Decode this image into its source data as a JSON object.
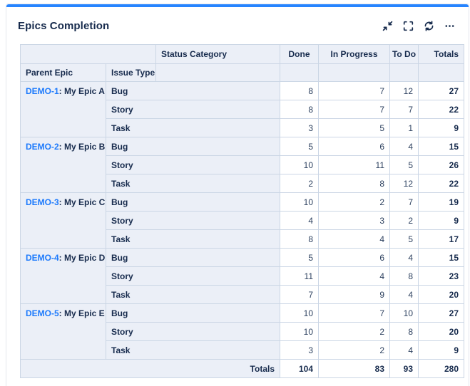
{
  "card": {
    "title": "Epics Completion",
    "accent_color": "#2684FF",
    "toolbar": {
      "collapse_tooltip": "Collapse",
      "fullscreen_tooltip": "Full screen",
      "refresh_tooltip": "Refresh",
      "more_tooltip": "More options",
      "icons": [
        "collapse-icon",
        "fullscreen-icon",
        "refresh-icon",
        "ellipsis-icon"
      ]
    }
  },
  "colors": {
    "accent": "#2684FF",
    "link": "#1D7AFC",
    "text": "#172B4D",
    "header_bg": "#ebeff7",
    "border": "#cbd6e5"
  },
  "table": {
    "column_group_label": "Status Category",
    "row_headers": [
      "Parent Epic",
      "Issue Type"
    ],
    "status_columns": [
      "Done",
      "In Progress",
      "To Do"
    ],
    "totals_column_label": "Totals",
    "key_name_separator": ": ",
    "epics": [
      {
        "key": "DEMO-1",
        "name": "My Epic A",
        "rows": [
          {
            "issue_type": "Bug",
            "values": [
              8,
              7,
              12
            ],
            "total": 27
          },
          {
            "issue_type": "Story",
            "values": [
              8,
              7,
              7
            ],
            "total": 22
          },
          {
            "issue_type": "Task",
            "values": [
              3,
              5,
              1
            ],
            "total": 9
          }
        ]
      },
      {
        "key": "DEMO-2",
        "name": "My Epic B",
        "rows": [
          {
            "issue_type": "Bug",
            "values": [
              5,
              6,
              4
            ],
            "total": 15
          },
          {
            "issue_type": "Story",
            "values": [
              10,
              11,
              5
            ],
            "total": 26
          },
          {
            "issue_type": "Task",
            "values": [
              2,
              8,
              12
            ],
            "total": 22
          }
        ]
      },
      {
        "key": "DEMO-3",
        "name": "My Epic C",
        "rows": [
          {
            "issue_type": "Bug",
            "values": [
              10,
              2,
              7
            ],
            "total": 19
          },
          {
            "issue_type": "Story",
            "values": [
              4,
              3,
              2
            ],
            "total": 9
          },
          {
            "issue_type": "Task",
            "values": [
              8,
              4,
              5
            ],
            "total": 17
          }
        ]
      },
      {
        "key": "DEMO-4",
        "name": "My Epic D",
        "rows": [
          {
            "issue_type": "Bug",
            "values": [
              5,
              6,
              4
            ],
            "total": 15
          },
          {
            "issue_type": "Story",
            "values": [
              11,
              4,
              8
            ],
            "total": 23
          },
          {
            "issue_type": "Task",
            "values": [
              7,
              9,
              4
            ],
            "total": 20
          }
        ]
      },
      {
        "key": "DEMO-5",
        "name": "My Epic E",
        "rows": [
          {
            "issue_type": "Bug",
            "values": [
              10,
              7,
              10
            ],
            "total": 27
          },
          {
            "issue_type": "Story",
            "values": [
              10,
              2,
              8
            ],
            "total": 20
          },
          {
            "issue_type": "Task",
            "values": [
              3,
              2,
              4
            ],
            "total": 9
          }
        ]
      }
    ],
    "footer": {
      "label": "Totals",
      "values": [
        104,
        83,
        93
      ],
      "total": 280
    }
  }
}
